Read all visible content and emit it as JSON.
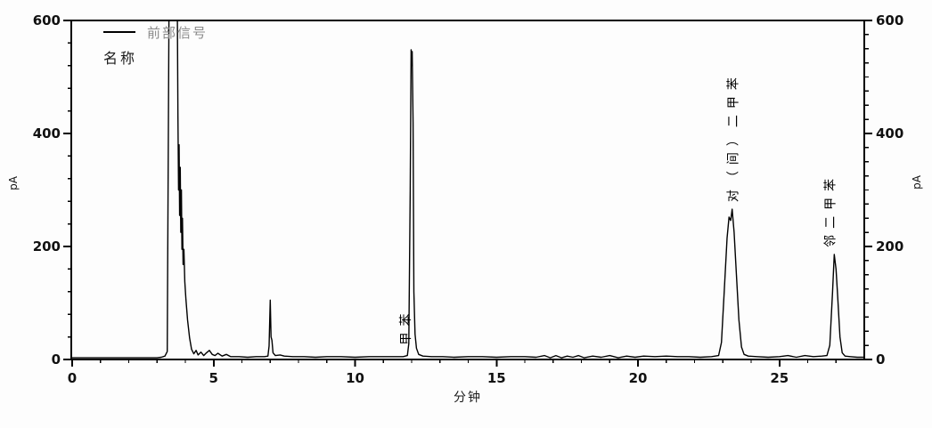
{
  "panel": {
    "background": "#fdfdfd",
    "axis_color": "#000000"
  },
  "legend": {
    "series_label": "前部信号",
    "series_label_color": "#8a8a8a",
    "name_label": "名称",
    "swatch_color": "#000000",
    "position": "top-left"
  },
  "chart_data": {
    "type": "line",
    "title": "",
    "xlabel": "分钟",
    "ylabel_left": "pA",
    "ylabel_right": "pA",
    "xlim": [
      0,
      28
    ],
    "ylim": [
      0,
      600
    ],
    "x_major_ticks": [
      0,
      5,
      10,
      15,
      20,
      25
    ],
    "x_minor_step": 1,
    "y_major_ticks": [
      0,
      200,
      400,
      600
    ],
    "y_minor_step_left": 40,
    "y_minor_step_right": 25,
    "grid": false,
    "legend_position": "top-left",
    "line_color": "#000000",
    "peaks": [
      {
        "label": "",
        "time": 3.55,
        "height_pA": 600,
        "clipped": true
      },
      {
        "label": "",
        "time": 7.0,
        "height_pA": 105,
        "clipped": false
      },
      {
        "label": "甲苯",
        "time": 12.0,
        "height_pA": 545,
        "clipped": false,
        "label_position": "base",
        "label_from_pA": 26,
        "dx": -2
      },
      {
        "label": "对（间）二甲苯",
        "time": 23.33,
        "height_pA": 266,
        "clipped": false,
        "label_position": "above",
        "dx": 6
      },
      {
        "label": "邻二甲苯",
        "time": 26.94,
        "height_pA": 186,
        "clipped": false,
        "label_position": "above",
        "dx": 0
      }
    ],
    "series": [
      {
        "name": "前部信号",
        "points": [
          [
            0,
            3
          ],
          [
            0.5,
            3
          ],
          [
            1,
            3
          ],
          [
            1.5,
            3
          ],
          [
            2,
            3
          ],
          [
            2.5,
            3
          ],
          [
            3.0,
            3
          ],
          [
            3.15,
            4
          ],
          [
            3.28,
            6
          ],
          [
            3.36,
            14
          ],
          [
            3.42,
            999
          ],
          [
            3.72,
            999
          ],
          [
            3.74,
            430
          ],
          [
            3.76,
            300
          ],
          [
            3.78,
            380
          ],
          [
            3.8,
            255
          ],
          [
            3.82,
            340
          ],
          [
            3.84,
            225
          ],
          [
            3.86,
            300
          ],
          [
            3.88,
            195
          ],
          [
            3.9,
            250
          ],
          [
            3.92,
            168
          ],
          [
            3.95,
            195
          ],
          [
            3.98,
            138
          ],
          [
            4.02,
            108
          ],
          [
            4.08,
            70
          ],
          [
            4.15,
            38
          ],
          [
            4.22,
            18
          ],
          [
            4.3,
            10
          ],
          [
            4.38,
            16
          ],
          [
            4.45,
            8
          ],
          [
            4.55,
            13
          ],
          [
            4.65,
            7
          ],
          [
            4.75,
            12
          ],
          [
            4.85,
            16
          ],
          [
            4.95,
            9
          ],
          [
            5.05,
            7
          ],
          [
            5.15,
            11
          ],
          [
            5.3,
            6
          ],
          [
            5.45,
            9
          ],
          [
            5.6,
            5
          ],
          [
            5.9,
            5
          ],
          [
            6.2,
            4
          ],
          [
            6.5,
            5
          ],
          [
            6.8,
            5
          ],
          [
            6.92,
            6
          ],
          [
            6.96,
            24
          ],
          [
            7.0,
            105
          ],
          [
            7.03,
            40
          ],
          [
            7.06,
            34
          ],
          [
            7.1,
            12
          ],
          [
            7.18,
            7
          ],
          [
            7.35,
            8
          ],
          [
            7.5,
            6
          ],
          [
            7.8,
            5
          ],
          [
            8.2,
            5
          ],
          [
            8.6,
            4
          ],
          [
            9.0,
            5
          ],
          [
            9.5,
            5
          ],
          [
            10.0,
            4
          ],
          [
            10.5,
            5
          ],
          [
            11.0,
            5
          ],
          [
            11.4,
            5
          ],
          [
            11.7,
            5
          ],
          [
            11.85,
            7
          ],
          [
            11.9,
            28
          ],
          [
            11.95,
            300
          ],
          [
            11.98,
            548
          ],
          [
            12.0,
            520
          ],
          [
            12.02,
            545
          ],
          [
            12.05,
            420
          ],
          [
            12.08,
            120
          ],
          [
            12.12,
            45
          ],
          [
            12.17,
            20
          ],
          [
            12.25,
            9
          ],
          [
            12.4,
            6
          ],
          [
            12.7,
            5
          ],
          [
            13.1,
            5
          ],
          [
            13.5,
            4
          ],
          [
            14,
            5
          ],
          [
            14.5,
            5
          ],
          [
            15,
            4
          ],
          [
            15.5,
            5
          ],
          [
            16,
            5
          ],
          [
            16.4,
            4
          ],
          [
            16.7,
            7
          ],
          [
            16.9,
            3
          ],
          [
            17.1,
            7
          ],
          [
            17.3,
            3
          ],
          [
            17.5,
            6
          ],
          [
            17.7,
            4
          ],
          [
            17.9,
            7
          ],
          [
            18.1,
            3
          ],
          [
            18.4,
            6
          ],
          [
            18.7,
            4
          ],
          [
            19.0,
            7
          ],
          [
            19.3,
            3
          ],
          [
            19.6,
            6
          ],
          [
            19.9,
            4
          ],
          [
            20.2,
            6
          ],
          [
            20.6,
            5
          ],
          [
            21.0,
            6
          ],
          [
            21.4,
            5
          ],
          [
            21.8,
            5
          ],
          [
            22.2,
            4
          ],
          [
            22.6,
            5
          ],
          [
            22.85,
            7
          ],
          [
            22.95,
            30
          ],
          [
            23.05,
            120
          ],
          [
            23.15,
            215
          ],
          [
            23.22,
            252
          ],
          [
            23.28,
            246
          ],
          [
            23.33,
            266
          ],
          [
            23.4,
            225
          ],
          [
            23.48,
            150
          ],
          [
            23.57,
            70
          ],
          [
            23.66,
            22
          ],
          [
            23.75,
            9
          ],
          [
            23.9,
            6
          ],
          [
            24.2,
            5
          ],
          [
            24.6,
            4
          ],
          [
            25.0,
            5
          ],
          [
            25.3,
            7
          ],
          [
            25.6,
            4
          ],
          [
            25.9,
            7
          ],
          [
            26.2,
            5
          ],
          [
            26.5,
            6
          ],
          [
            26.68,
            7
          ],
          [
            26.78,
            25
          ],
          [
            26.88,
            120
          ],
          [
            26.94,
            186
          ],
          [
            27.0,
            160
          ],
          [
            27.06,
            110
          ],
          [
            27.14,
            40
          ],
          [
            27.22,
            12
          ],
          [
            27.32,
            6
          ],
          [
            27.5,
            5
          ],
          [
            27.75,
            4
          ],
          [
            28,
            4
          ]
        ]
      }
    ]
  }
}
